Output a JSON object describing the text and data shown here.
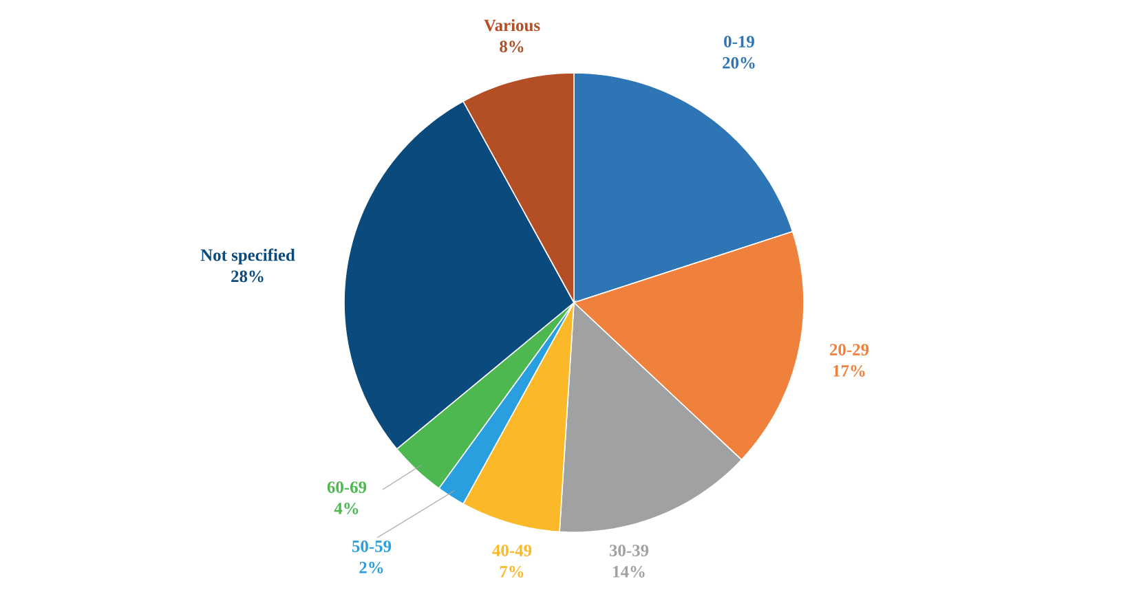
{
  "chart_data": {
    "type": "pie",
    "categories": [
      "0-19",
      "20-29",
      "30-39",
      "40-49",
      "50-59",
      "60-69",
      "Not specified",
      "Various"
    ],
    "values": [
      20,
      17,
      14,
      7,
      2,
      4,
      28,
      8
    ],
    "value_labels": [
      "20%",
      "17%",
      "14%",
      "7%",
      "2%",
      "4%",
      "28%",
      "8%"
    ],
    "colors": [
      "#2e75b6",
      "#f0813c",
      "#9fa1a2",
      "#fbb829",
      "#2a9fe0",
      "#4cb84f",
      "#0b4a7d",
      "#b44e24"
    ]
  }
}
